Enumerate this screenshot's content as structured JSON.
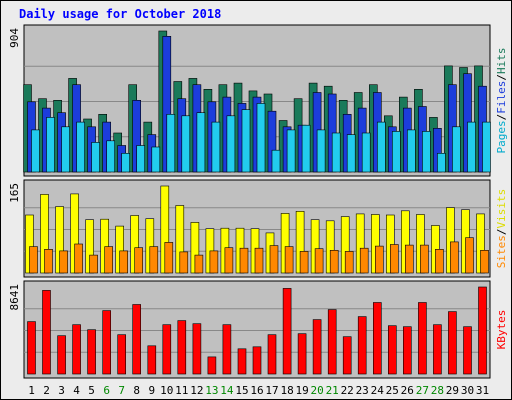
{
  "chart_data": {
    "type": "bar",
    "title": "Daily usage for October 2018",
    "days": [
      "1",
      "2",
      "3",
      "4",
      "5",
      "6",
      "7",
      "8",
      "9",
      "10",
      "11",
      "12",
      "13",
      "14",
      "15",
      "16",
      "17",
      "18",
      "19",
      "20",
      "21",
      "22",
      "23",
      "24",
      "25",
      "26",
      "27",
      "28",
      "29",
      "30",
      "31"
    ],
    "weekend_days": [
      "6",
      "7",
      "13",
      "14",
      "20",
      "21",
      "27",
      "28"
    ],
    "panels": [
      {
        "id": "hits_files_pages",
        "max_label": "904",
        "ylim": [
          0,
          904
        ],
        "right_label_parts": [
          "Pages",
          "/",
          "Files",
          "/",
          "Hits"
        ],
        "series": [
          {
            "name": "Hits",
            "color": "#1a7a5a",
            "values": [
              560,
              470,
              460,
              600,
              340,
              370,
              250,
              560,
              320,
              904,
              580,
              600,
              530,
              560,
              570,
              520,
              500,
              330,
              470,
              570,
              550,
              460,
              510,
              560,
              360,
              480,
              530,
              350,
              680,
              670,
              680
            ]
          },
          {
            "name": "Files",
            "color": "#1c3ddb",
            "values": [
              450,
              410,
              380,
              560,
              290,
              320,
              170,
              460,
              240,
              870,
              470,
              560,
              450,
              480,
              440,
              480,
              390,
              290,
              300,
              510,
              500,
              370,
              410,
              510,
              290,
              410,
              420,
              280,
              560,
              630,
              550
            ]
          },
          {
            "name": "Pages",
            "color": "#22ccee",
            "values": [
              270,
              350,
              290,
              320,
              190,
              200,
              120,
              170,
              160,
              370,
              360,
              380,
              320,
              360,
              400,
              440,
              140,
              270,
              300,
              270,
              250,
              240,
              250,
              320,
              260,
              270,
              260,
              120,
              290,
              320,
              320
            ]
          }
        ]
      },
      {
        "id": "visits_sites",
        "max_label": "165",
        "ylim": [
          0,
          165
        ],
        "right_label_parts": [
          "Sites",
          "/",
          "Visits"
        ],
        "series": [
          {
            "name": "Visits",
            "color": "#ffff00",
            "values": [
              110,
              149,
              126,
              150,
              101,
              102,
              89,
              109,
              103,
              165,
              128,
              96,
              84,
              85,
              85,
              84,
              76,
              113,
              117,
              101,
              99,
              107,
              112,
              111,
              110,
              118,
              111,
              90,
              124,
              120,
              112
            ]
          },
          {
            "name": "Sites",
            "color": "#ff8800",
            "values": [
              50,
              45,
              42,
              55,
              34,
              50,
              42,
              48,
              50,
              58,
              40,
              34,
              42,
              48,
              47,
              47,
              52,
              50,
              41,
              46,
              43,
              41,
              47,
              51,
              54,
              53,
              53,
              45,
              59,
              67,
              43
            ]
          }
        ]
      },
      {
        "id": "kbytes",
        "max_label": "8641",
        "ylim": [
          0,
          8641
        ],
        "right_label_parts": [
          "KBytes"
        ],
        "series": [
          {
            "name": "KBytes",
            "color": "#ff0000",
            "values": [
              5200,
              8300,
              3800,
              4900,
              4400,
              6300,
              3900,
              6900,
              2800,
              4900,
              5300,
              5000,
              1700,
              4900,
              2500,
              2700,
              3900,
              8500,
              4000,
              5400,
              6400,
              3700,
              5700,
              7100,
              4800,
              4700,
              7100,
              4900,
              6200,
              4700,
              8641
            ]
          }
        ]
      }
    ]
  }
}
